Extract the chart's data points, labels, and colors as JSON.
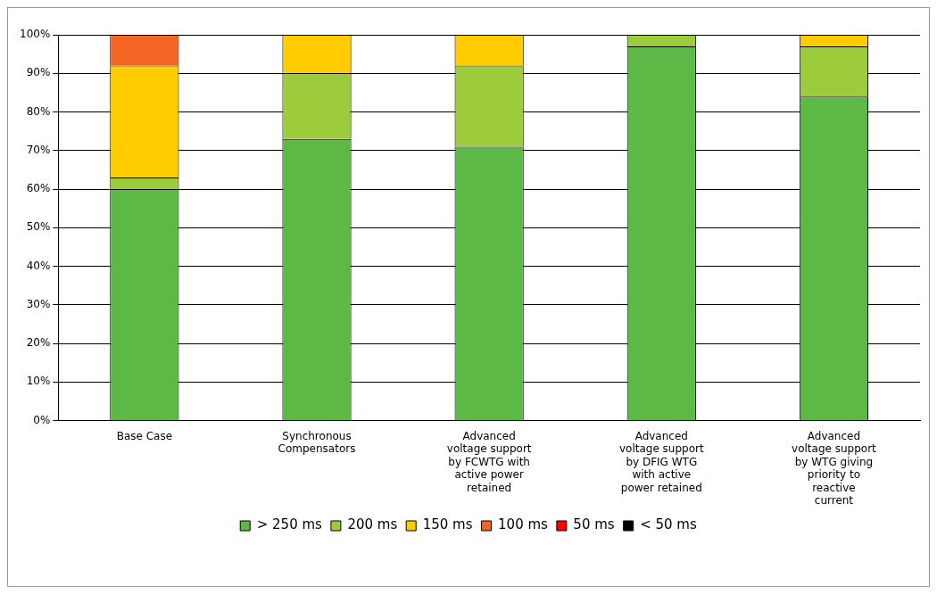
{
  "chart_data": {
    "type": "bar",
    "stacked": true,
    "categories": [
      "Base Case",
      "Synchronous Compensators",
      "Advanced voltage support by FCWTG with active power retained",
      "Advanced voltage support by DFIG WTG with active power retained",
      "Advanced voltage support by WTG giving priority to reactive current"
    ],
    "series": [
      {
        "name": "> 250 ms",
        "color": "#5cb946",
        "values": [
          60,
          73,
          71,
          97,
          84
        ]
      },
      {
        "name": "200 ms",
        "color": "#9ccc3c",
        "values": [
          3,
          17,
          21,
          3,
          13
        ]
      },
      {
        "name": "150 ms",
        "color": "#ffcc00",
        "values": [
          29,
          10,
          8,
          0,
          3
        ]
      },
      {
        "name": "100 ms",
        "color": "#f26522",
        "values": [
          8,
          0,
          0,
          0,
          0
        ]
      },
      {
        "name": "50 ms",
        "color": "#ff0000",
        "values": [
          0,
          0,
          0,
          0,
          0
        ]
      },
      {
        "name": "< 50 ms",
        "color": "#000000",
        "values": [
          0,
          0,
          0,
          0,
          0
        ]
      }
    ],
    "ylim": [
      0,
      100
    ],
    "yticks": [
      {
        "value": 0,
        "label": "0%"
      },
      {
        "value": 10,
        "label": "10%"
      },
      {
        "value": 20,
        "label": "20%"
      },
      {
        "value": 30,
        "label": "30%"
      },
      {
        "value": 40,
        "label": "40%"
      },
      {
        "value": 50,
        "label": "50%"
      },
      {
        "value": 60,
        "label": "60%"
      },
      {
        "value": 70,
        "label": "70%"
      },
      {
        "value": 80,
        "label": "80%"
      },
      {
        "value": 90,
        "label": "90%"
      },
      {
        "value": 100,
        "label": "100%"
      }
    ],
    "grid": "y",
    "legend": "bottom"
  }
}
